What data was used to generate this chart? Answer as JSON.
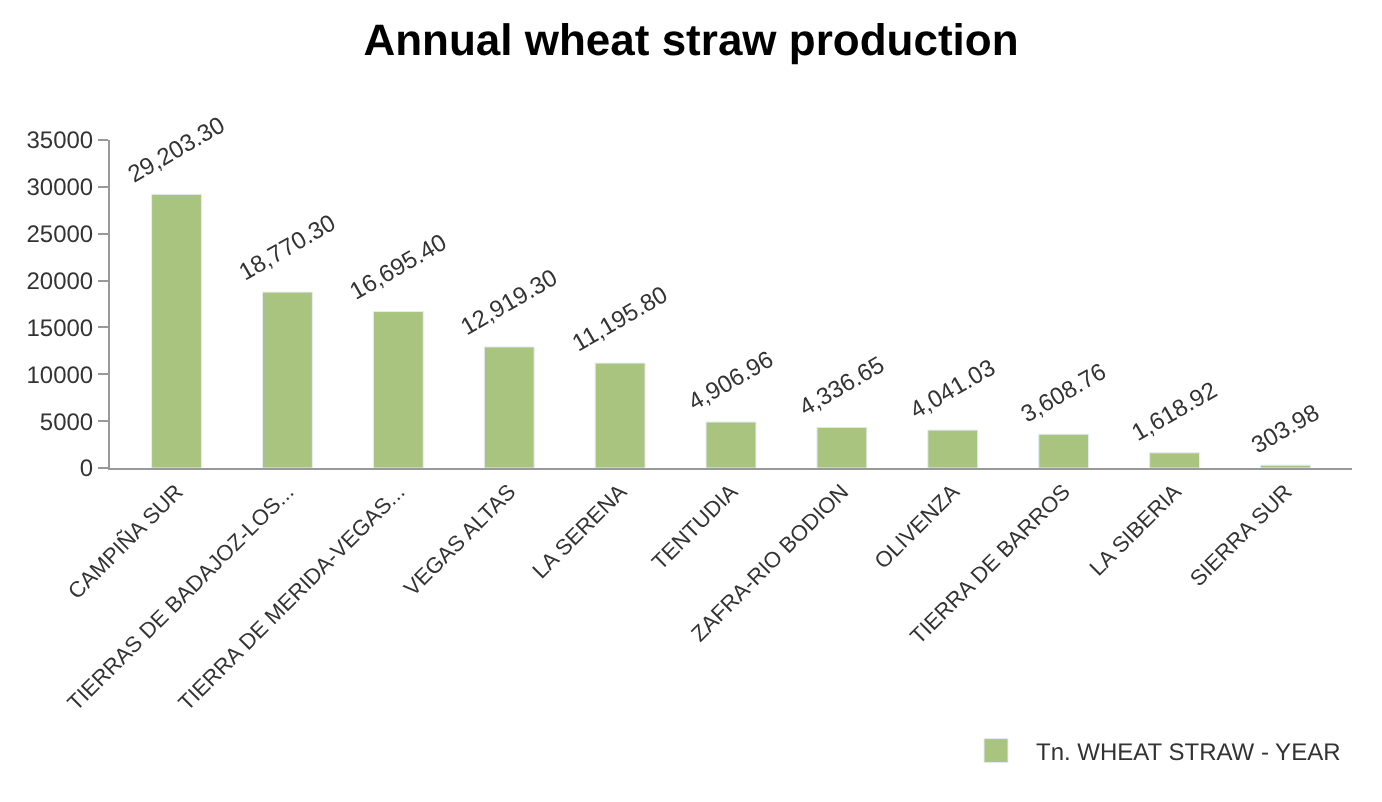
{
  "chart_data": {
    "type": "bar",
    "title": "Annual wheat straw production",
    "categories": [
      "CAMPIÑA SUR",
      "TIERRAS DE BADAJOZ-LOS...",
      "TIERRA DE MERIDA-VEGAS...",
      "VEGAS ALTAS",
      "LA SERENA",
      "TENTUDIA",
      "ZAFRA-RIO BODION",
      "OLIVENZA",
      "TIERRA DE BARROS",
      "LA SIBERIA",
      "SIERRA SUR"
    ],
    "series": [
      {
        "name": "Tn. WHEAT STRAW - YEAR",
        "color": "#a9c47f",
        "values": [
          29203.3,
          18770.3,
          16695.4,
          12919.3,
          11195.8,
          4906.96,
          4336.65,
          4041.03,
          3608.76,
          1618.92,
          303.98
        ],
        "value_labels": [
          "29,203.30",
          "18,770.30",
          "16,695.40",
          "12,919.30",
          "11,195.80",
          "4,906.96",
          "4,336.65",
          "4,041.03",
          "3,608.76",
          "1,618.92",
          "303.98"
        ]
      }
    ],
    "ylim": [
      0,
      35000
    ],
    "yticks": [
      0,
      5000,
      10000,
      15000,
      20000,
      25000,
      30000,
      35000
    ],
    "legend": "bottom right"
  }
}
